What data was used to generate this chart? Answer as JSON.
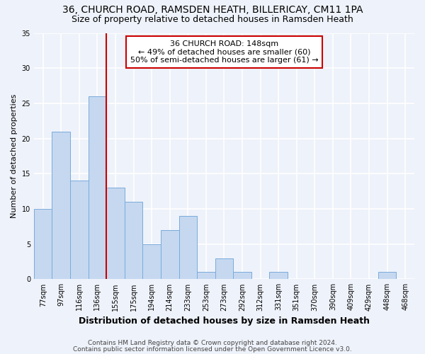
{
  "title1": "36, CHURCH ROAD, RAMSDEN HEATH, BILLERICAY, CM11 1PA",
  "title2": "Size of property relative to detached houses in Ramsden Heath",
  "xlabel": "Distribution of detached houses by size in Ramsden Heath",
  "ylabel": "Number of detached properties",
  "categories": [
    "77sqm",
    "97sqm",
    "116sqm",
    "136sqm",
    "155sqm",
    "175sqm",
    "194sqm",
    "214sqm",
    "233sqm",
    "253sqm",
    "273sqm",
    "292sqm",
    "312sqm",
    "331sqm",
    "351sqm",
    "370sqm",
    "390sqm",
    "409sqm",
    "429sqm",
    "448sqm",
    "468sqm"
  ],
  "values": [
    10,
    21,
    14,
    26,
    13,
    11,
    5,
    7,
    9,
    1,
    3,
    1,
    0,
    1,
    0,
    0,
    0,
    0,
    0,
    1,
    0
  ],
  "bar_color": "#c5d8f0",
  "bar_edge_color": "#7aabdb",
  "red_line_index": 4,
  "annotation_line1": "36 CHURCH ROAD: 148sqm",
  "annotation_line2": "← 49% of detached houses are smaller (60)",
  "annotation_line3": "50% of semi-detached houses are larger (61) →",
  "annotation_box_color": "#ffffff",
  "annotation_box_edge_color": "#cc0000",
  "ylim": [
    0,
    35
  ],
  "yticks": [
    0,
    5,
    10,
    15,
    20,
    25,
    30,
    35
  ],
  "footer1": "Contains HM Land Registry data © Crown copyright and database right 2024.",
  "footer2": "Contains public sector information licensed under the Open Government Licence v3.0.",
  "bg_color": "#eef2fa",
  "grid_color": "#ffffff",
  "title1_fontsize": 10,
  "title2_fontsize": 9,
  "xlabel_fontsize": 9,
  "ylabel_fontsize": 8,
  "tick_fontsize": 7,
  "annotation_fontsize": 8,
  "footer_fontsize": 6.5
}
